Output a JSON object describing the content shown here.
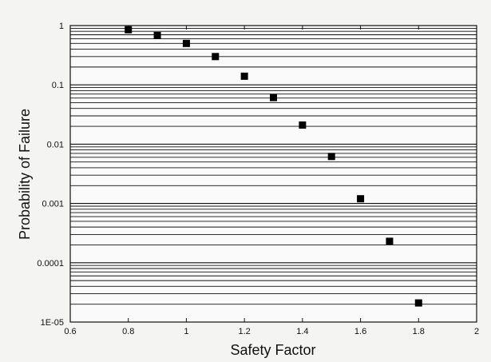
{
  "chart_data": {
    "type": "scatter",
    "xlabel": "Safety Factor",
    "ylabel": "Probability of Failure",
    "xlim": [
      0.6,
      2
    ],
    "ylim": [
      1e-05,
      1
    ],
    "y_scale": "log",
    "grid": "horizontal minor and major (log)",
    "x_ticks": [
      0.6,
      0.8,
      1,
      1.2,
      1.4,
      1.6,
      1.8,
      2
    ],
    "x_tick_labels": [
      "0.6",
      "0.8",
      "1",
      "1.2",
      "1.4",
      "1.6",
      "1.8",
      "2"
    ],
    "y_ticks": [
      1,
      0.1,
      0.01,
      0.001,
      0.0001,
      1e-05
    ],
    "y_tick_labels": [
      "1",
      "0.1",
      "0.01",
      "0.001",
      "0.0001",
      "1E-05"
    ],
    "marker": "square",
    "marker_color": "#000000",
    "points": [
      {
        "x": 0.8,
        "y": 0.85
      },
      {
        "x": 0.9,
        "y": 0.68
      },
      {
        "x": 1.0,
        "y": 0.5
      },
      {
        "x": 1.1,
        "y": 0.3
      },
      {
        "x": 1.2,
        "y": 0.14
      },
      {
        "x": 1.3,
        "y": 0.061
      },
      {
        "x": 1.4,
        "y": 0.021
      },
      {
        "x": 1.5,
        "y": 0.0062
      },
      {
        "x": 1.6,
        "y": 0.0012
      },
      {
        "x": 1.7,
        "y": 0.00023
      },
      {
        "x": 1.8,
        "y": 2.1e-05
      }
    ]
  }
}
